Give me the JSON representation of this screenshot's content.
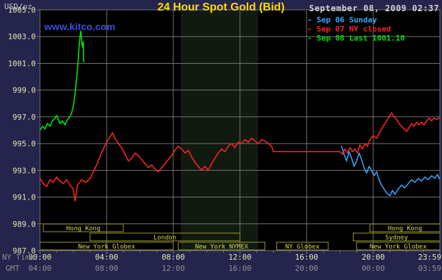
{
  "header": {
    "unit_label": "USD/oz",
    "title": "24 Hour Spot Gold (Bid)",
    "timestamp": "September 08, 2009 02:37",
    "watermark": "www.kitco.com"
  },
  "legend": {
    "items": [
      {
        "label": "Sep 06 Sunday",
        "color": "#33aaff"
      },
      {
        "label": "Sep 07 NY closed",
        "color": "#ff2222"
      },
      {
        "label": "Sep 08 Last 1001.10",
        "color": "#00dd00"
      }
    ]
  },
  "colors": {
    "background": "#24244c",
    "plot_bg": "#000000",
    "band": "#111a0e",
    "grid": "#757575",
    "axis_text": "#e6e6b4",
    "axis_caption": "#8f8f8f",
    "session_border": "#97972f",
    "session_text": "#d8d855",
    "title": "#ffdd00",
    "watermark": "#3b4ddd",
    "timestamp": "#d0d0d0",
    "unit": "#c8c8c8"
  },
  "chart_data": {
    "type": "line",
    "title": "24 Hour Spot Gold (Bid)",
    "x_axis": {
      "label_ny": "NY Time",
      "label_gmt": "GMT",
      "range_hours": [
        0,
        24
      ],
      "tick_hours": [
        0,
        4,
        8,
        12,
        16,
        20,
        24
      ],
      "ticks_ny": [
        "00:00",
        "04:00",
        "08:00",
        "12:00",
        "16:00",
        "20:00",
        "23:59"
      ],
      "ticks_gmt": [
        "04:00",
        "08:00",
        "12:00",
        "16:00",
        "20:00",
        "00:00",
        "03:59"
      ]
    },
    "y_axis": {
      "label": "USD/oz",
      "min": 987,
      "max": 1005,
      "step": 2,
      "ticks": [
        "1005.0",
        "1003.0",
        "1001.0",
        "999.0",
        "997.0",
        "995.0",
        "993.0",
        "991.0",
        "989.0",
        "987.0"
      ]
    },
    "highlight_band": {
      "start_hour": 8.45,
      "end_hour": 13.1
    },
    "sessions": [
      {
        "row": 0,
        "label": "Hong Kong",
        "start": 0.2,
        "end": 5.0
      },
      {
        "row": 0,
        "label": "Hong Kong",
        "start": 19.8,
        "end": 24.0
      },
      {
        "row": 1,
        "label": "London",
        "start": 3.0,
        "end": 12.0
      },
      {
        "row": 1,
        "label": "Sydney",
        "start": 18.8,
        "end": 24.0
      },
      {
        "row": 2,
        "label": "New York Globex",
        "start": 0.0,
        "end": 8.0
      },
      {
        "row": 2,
        "label": "New York NYMEX",
        "start": 8.3,
        "end": 13.5
      },
      {
        "row": 2,
        "label": "NY Globex",
        "start": 14.2,
        "end": 17.3
      },
      {
        "row": 2,
        "label": "New York Globex",
        "start": 19.0,
        "end": 24.0
      }
    ],
    "series": [
      {
        "name": "Sep 07 NY closed",
        "color": "#ff2222",
        "width": 1.6,
        "points": [
          [
            0,
            992.4
          ],
          [
            0.2,
            992.0
          ],
          [
            0.4,
            991.8
          ],
          [
            0.6,
            992.3
          ],
          [
            0.8,
            992.1
          ],
          [
            1.0,
            992.5
          ],
          [
            1.2,
            992.2
          ],
          [
            1.4,
            992.0
          ],
          [
            1.6,
            992.3
          ],
          [
            1.8,
            991.9
          ],
          [
            2.0,
            991.6
          ],
          [
            2.1,
            990.7
          ],
          [
            2.25,
            991.9
          ],
          [
            2.5,
            992.3
          ],
          [
            2.75,
            992.1
          ],
          [
            3.0,
            992.4
          ],
          [
            3.25,
            993.0
          ],
          [
            3.5,
            993.7
          ],
          [
            3.75,
            994.5
          ],
          [
            4.0,
            995.1
          ],
          [
            4.2,
            995.5
          ],
          [
            4.35,
            995.8
          ],
          [
            4.5,
            995.4
          ],
          [
            4.7,
            995.0
          ],
          [
            4.9,
            994.7
          ],
          [
            5.1,
            994.2
          ],
          [
            5.3,
            993.7
          ],
          [
            5.5,
            993.9
          ],
          [
            5.7,
            994.3
          ],
          [
            5.9,
            994.1
          ],
          [
            6.1,
            993.8
          ],
          [
            6.3,
            993.5
          ],
          [
            6.5,
            993.2
          ],
          [
            6.7,
            993.4
          ],
          [
            6.9,
            993.1
          ],
          [
            7.1,
            992.9
          ],
          [
            7.3,
            993.2
          ],
          [
            7.5,
            993.5
          ],
          [
            7.7,
            993.8
          ],
          [
            7.9,
            994.1
          ],
          [
            8.1,
            994.5
          ],
          [
            8.3,
            994.8
          ],
          [
            8.5,
            994.6
          ],
          [
            8.7,
            994.3
          ],
          [
            8.9,
            994.5
          ],
          [
            9.1,
            994.0
          ],
          [
            9.3,
            993.6
          ],
          [
            9.5,
            993.3
          ],
          [
            9.7,
            993.0
          ],
          [
            9.9,
            993.3
          ],
          [
            10.1,
            993.0
          ],
          [
            10.3,
            993.5
          ],
          [
            10.5,
            993.9
          ],
          [
            10.7,
            994.3
          ],
          [
            10.9,
            994.6
          ],
          [
            11.1,
            994.4
          ],
          [
            11.3,
            994.8
          ],
          [
            11.5,
            995.0
          ],
          [
            11.7,
            994.7
          ],
          [
            11.9,
            995.1
          ],
          [
            12.1,
            995.0
          ],
          [
            12.3,
            995.3
          ],
          [
            12.5,
            995.1
          ],
          [
            12.7,
            995.4
          ],
          [
            12.9,
            995.2
          ],
          [
            13.1,
            995.0
          ],
          [
            13.3,
            995.3
          ],
          [
            13.5,
            995.2
          ],
          [
            13.7,
            995.0
          ],
          [
            13.9,
            994.8
          ],
          [
            14.0,
            994.4
          ],
          [
            18.0,
            994.4
          ],
          [
            18.15,
            994.2
          ],
          [
            18.3,
            994.6
          ],
          [
            18.45,
            994.3
          ],
          [
            18.6,
            994.7
          ],
          [
            18.75,
            994.4
          ],
          [
            18.9,
            994.6
          ],
          [
            19.05,
            994.3
          ],
          [
            19.2,
            994.9
          ],
          [
            19.35,
            994.6
          ],
          [
            19.5,
            995.0
          ],
          [
            19.65,
            994.8
          ],
          [
            19.8,
            995.3
          ],
          [
            20.0,
            995.6
          ],
          [
            20.2,
            995.4
          ],
          [
            20.4,
            995.9
          ],
          [
            20.6,
            996.3
          ],
          [
            20.8,
            996.7
          ],
          [
            21.0,
            997.1
          ],
          [
            21.1,
            997.3
          ],
          [
            21.25,
            997.0
          ],
          [
            21.4,
            996.8
          ],
          [
            21.55,
            996.5
          ],
          [
            21.7,
            996.3
          ],
          [
            21.85,
            996.1
          ],
          [
            22.0,
            995.9
          ],
          [
            22.15,
            996.2
          ],
          [
            22.3,
            996.5
          ],
          [
            22.45,
            996.3
          ],
          [
            22.6,
            996.6
          ],
          [
            22.75,
            996.4
          ],
          [
            22.9,
            996.6
          ],
          [
            23.05,
            996.4
          ],
          [
            23.2,
            996.7
          ],
          [
            23.35,
            996.9
          ],
          [
            23.5,
            996.7
          ],
          [
            23.65,
            996.9
          ],
          [
            23.8,
            996.8
          ],
          [
            23.95,
            996.9
          ]
        ]
      },
      {
        "name": "Sep 06 Sunday",
        "color": "#33aaff",
        "width": 1.5,
        "points": [
          [
            18.1,
            994.8
          ],
          [
            18.25,
            994.2
          ],
          [
            18.4,
            993.7
          ],
          [
            18.55,
            994.4
          ],
          [
            18.7,
            993.9
          ],
          [
            18.85,
            993.3
          ],
          [
            19.0,
            993.7
          ],
          [
            19.15,
            994.3
          ],
          [
            19.3,
            993.8
          ],
          [
            19.45,
            993.2
          ],
          [
            19.6,
            992.8
          ],
          [
            19.75,
            993.3
          ],
          [
            19.9,
            993.0
          ],
          [
            20.05,
            992.6
          ],
          [
            20.2,
            992.9
          ],
          [
            20.35,
            992.3
          ],
          [
            20.5,
            991.9
          ],
          [
            20.65,
            991.6
          ],
          [
            20.8,
            991.3
          ],
          [
            21.0,
            991.1
          ],
          [
            21.15,
            991.5
          ],
          [
            21.3,
            991.2
          ],
          [
            21.5,
            991.6
          ],
          [
            21.7,
            991.9
          ],
          [
            21.9,
            991.7
          ],
          [
            22.1,
            992.0
          ],
          [
            22.3,
            992.3
          ],
          [
            22.5,
            992.1
          ],
          [
            22.7,
            992.4
          ],
          [
            22.9,
            992.2
          ],
          [
            23.1,
            992.5
          ],
          [
            23.3,
            992.3
          ],
          [
            23.5,
            992.6
          ],
          [
            23.7,
            992.4
          ],
          [
            23.85,
            992.7
          ],
          [
            24.0,
            992.3
          ]
        ]
      },
      {
        "name": "Sep 08",
        "color": "#00dd00",
        "width": 1.7,
        "last_value": 1001.1,
        "points": [
          [
            0,
            996.0
          ],
          [
            0.15,
            996.3
          ],
          [
            0.3,
            996.1
          ],
          [
            0.45,
            996.5
          ],
          [
            0.6,
            996.3
          ],
          [
            0.75,
            996.7
          ],
          [
            0.9,
            996.9
          ],
          [
            1.0,
            997.1
          ],
          [
            1.1,
            996.8
          ],
          [
            1.2,
            996.5
          ],
          [
            1.35,
            996.7
          ],
          [
            1.5,
            996.4
          ],
          [
            1.65,
            996.8
          ],
          [
            1.8,
            997.0
          ],
          [
            1.9,
            997.3
          ],
          [
            2.0,
            997.8
          ],
          [
            2.1,
            998.7
          ],
          [
            2.2,
            999.9
          ],
          [
            2.3,
            1001.3
          ],
          [
            2.35,
            1002.3
          ],
          [
            2.4,
            1003.0
          ],
          [
            2.45,
            1003.4
          ],
          [
            2.5,
            1002.6
          ],
          [
            2.55,
            1002.2
          ],
          [
            2.6,
            1002.6
          ],
          [
            2.62,
            1001.1
          ]
        ]
      }
    ]
  }
}
